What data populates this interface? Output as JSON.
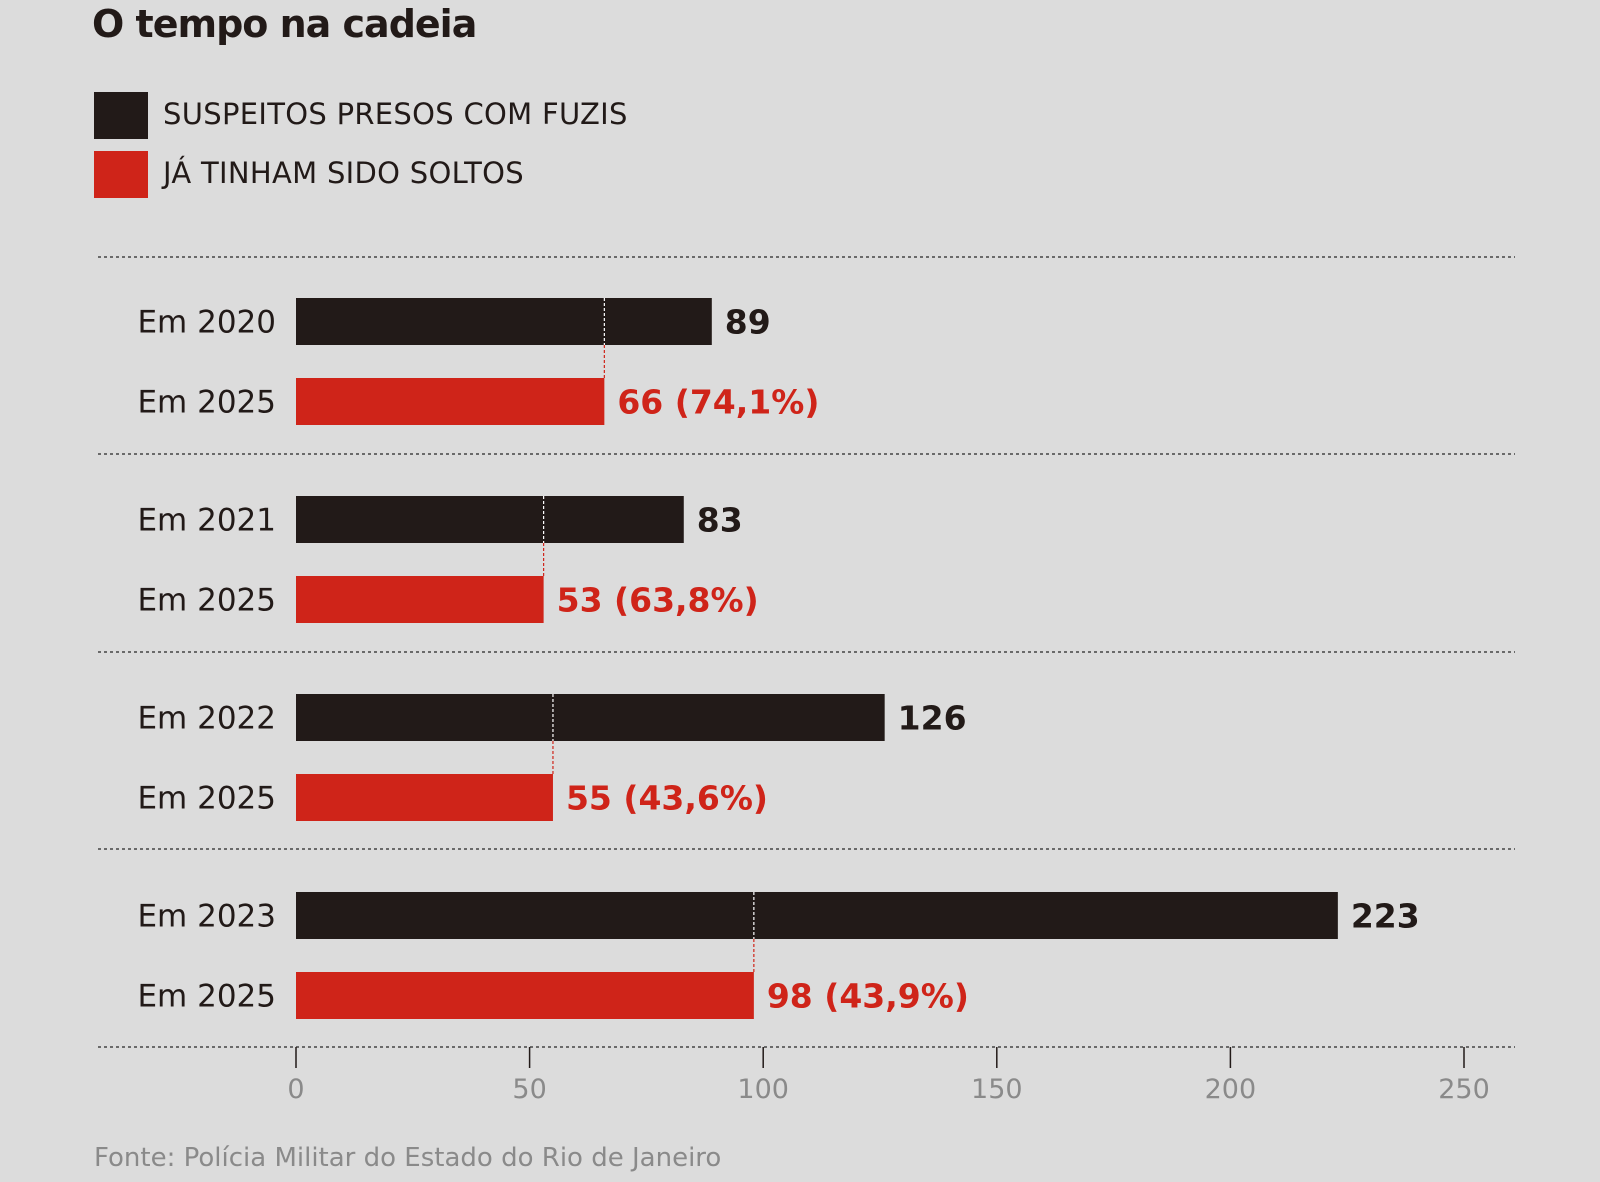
{
  "title": "O tempo na cadeia",
  "source": "Fonte: Polícia Militar do Estado do Rio de Janeiro",
  "colors": {
    "background": "#dcdcdc",
    "total": "#221a18",
    "released": "#cf2419",
    "axis_text": "#8a8a8a"
  },
  "chart_data": {
    "type": "bar",
    "orientation": "horizontal",
    "title": "O tempo na cadeia",
    "legend": [
      "SUSPEITOS PRESOS COM FUZIS",
      "JÁ TINHAM SIDO SOLTOS"
    ],
    "legend_placement": "top-left",
    "groups": [
      {
        "label_total": "Em 2020",
        "total": 89,
        "label_released": "Em 2025",
        "released": 66,
        "released_text": "66 (74,1%)",
        "total_text": "89"
      },
      {
        "label_total": "Em 2021",
        "total": 83,
        "label_released": "Em 2025",
        "released": 53,
        "released_text": "53 (63,8%)",
        "total_text": "83"
      },
      {
        "label_total": "Em 2022",
        "total": 126,
        "label_released": "Em 2025",
        "released": 55,
        "released_text": "55 (43,6%)",
        "total_text": "126"
      },
      {
        "label_total": "Em 2023",
        "total": 223,
        "label_released": "Em 2025",
        "released": 98,
        "released_text": "98 (43,9%)",
        "total_text": "223"
      }
    ],
    "xlim": [
      0,
      250
    ],
    "xticks": [
      "0",
      "50",
      "100",
      "150",
      "200",
      "250"
    ],
    "xtick_values": [
      0,
      50,
      100,
      150,
      200,
      250
    ],
    "xlabel": "",
    "ylabel": ""
  }
}
